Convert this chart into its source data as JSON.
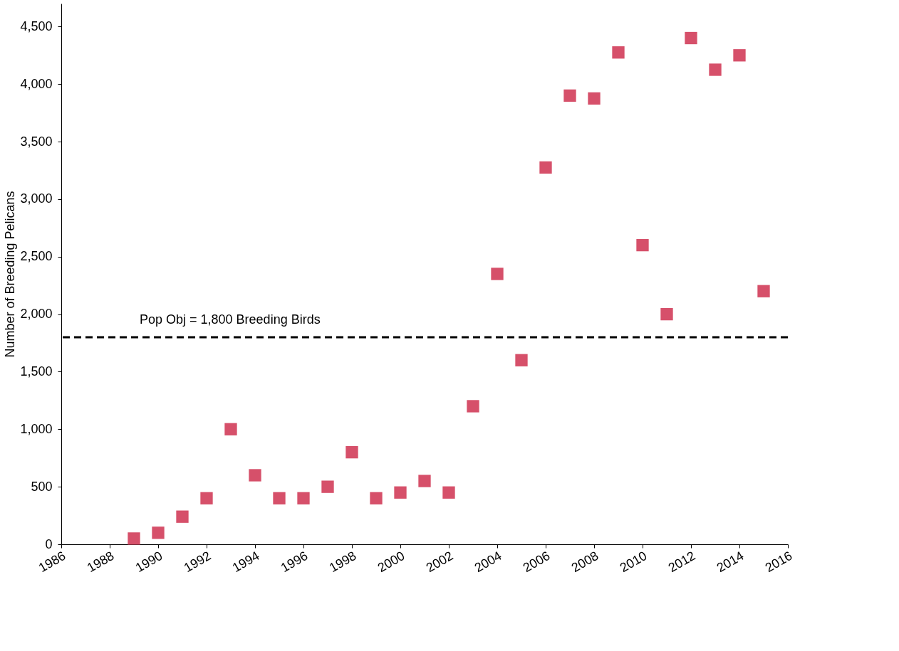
{
  "chart_data": {
    "type": "scatter",
    "ylabel": "Number of Breeding Pelicans",
    "x": [
      1989,
      1990,
      1991,
      1992,
      1993,
      1994,
      1995,
      1996,
      1997,
      1998,
      1999,
      2000,
      2001,
      2002,
      2003,
      2004,
      2005,
      2006,
      2007,
      2008,
      2009,
      2010,
      2011,
      2012,
      2013,
      2014,
      2015
    ],
    "series": [
      {
        "color": "#d6506a",
        "values": [
          50,
          100,
          240,
          400,
          1000,
          600,
          400,
          400,
          500,
          800,
          400,
          450,
          550,
          450,
          1200,
          2350,
          1600,
          3275,
          3900,
          3875,
          4275,
          2600,
          2000,
          4400,
          4125,
          4250,
          2200
        ]
      }
    ],
    "marker": "square",
    "grid": false,
    "xlim": [
      1986,
      2016
    ],
    "xticks": [
      1986,
      1988,
      1990,
      1992,
      1994,
      1996,
      1998,
      2000,
      2002,
      2004,
      2006,
      2008,
      2010,
      2012,
      2014,
      2016
    ],
    "ylim": [
      0,
      4700
    ],
    "yticks": [
      0,
      500,
      {
        "value": 1000,
        "label": "1,000"
      },
      {
        "value": 1500,
        "label": "1,500"
      },
      {
        "value": 2000,
        "label": "2,000"
      },
      {
        "value": 2500,
        "label": "2,500"
      },
      {
        "value": 3000,
        "label": "3,000"
      },
      {
        "value": 3500,
        "label": "3,500"
      },
      {
        "value": 4000,
        "label": "4,000"
      },
      {
        "value": 4500,
        "label": "4,500"
      }
    ],
    "ref_lines": [
      {
        "axis": "y",
        "value": 1800,
        "label": "Pop Obj  = 1,800 Breeding Birds",
        "color": "#000000",
        "line_style": "dashed"
      }
    ]
  }
}
